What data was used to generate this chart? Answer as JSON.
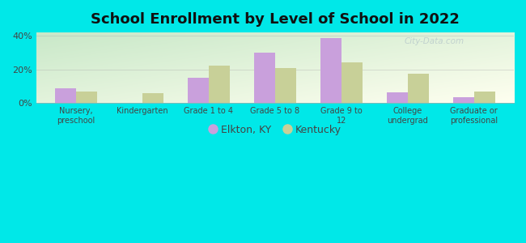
{
  "title": "School Enrollment by Level of School in 2022",
  "categories": [
    "Nursery,\npreschool",
    "Kindergarten",
    "Grade 1 to 4",
    "Grade 5 to 8",
    "Grade 9 to\n12",
    "College\nundergrad",
    "Graduate or\nprofessional"
  ],
  "elkton_values": [
    9.0,
    0.0,
    15.0,
    30.0,
    38.5,
    6.5,
    3.5
  ],
  "kentucky_values": [
    7.0,
    6.0,
    22.5,
    21.0,
    24.0,
    17.5,
    7.0
  ],
  "elkton_color": "#c9a0dc",
  "kentucky_color": "#c8d098",
  "background_color": "#00e8e8",
  "plot_bg_topleft": "#c8e8c8",
  "plot_bg_bottomright": "#fffff0",
  "ylim": [
    0,
    42
  ],
  "yticks": [
    0,
    20,
    40
  ],
  "ytick_labels": [
    "0%",
    "20%",
    "40%"
  ],
  "title_fontsize": 13,
  "legend_labels": [
    "Elkton, KY",
    "Kentucky"
  ],
  "watermark_text": "City-Data.com",
  "bar_width": 0.32
}
